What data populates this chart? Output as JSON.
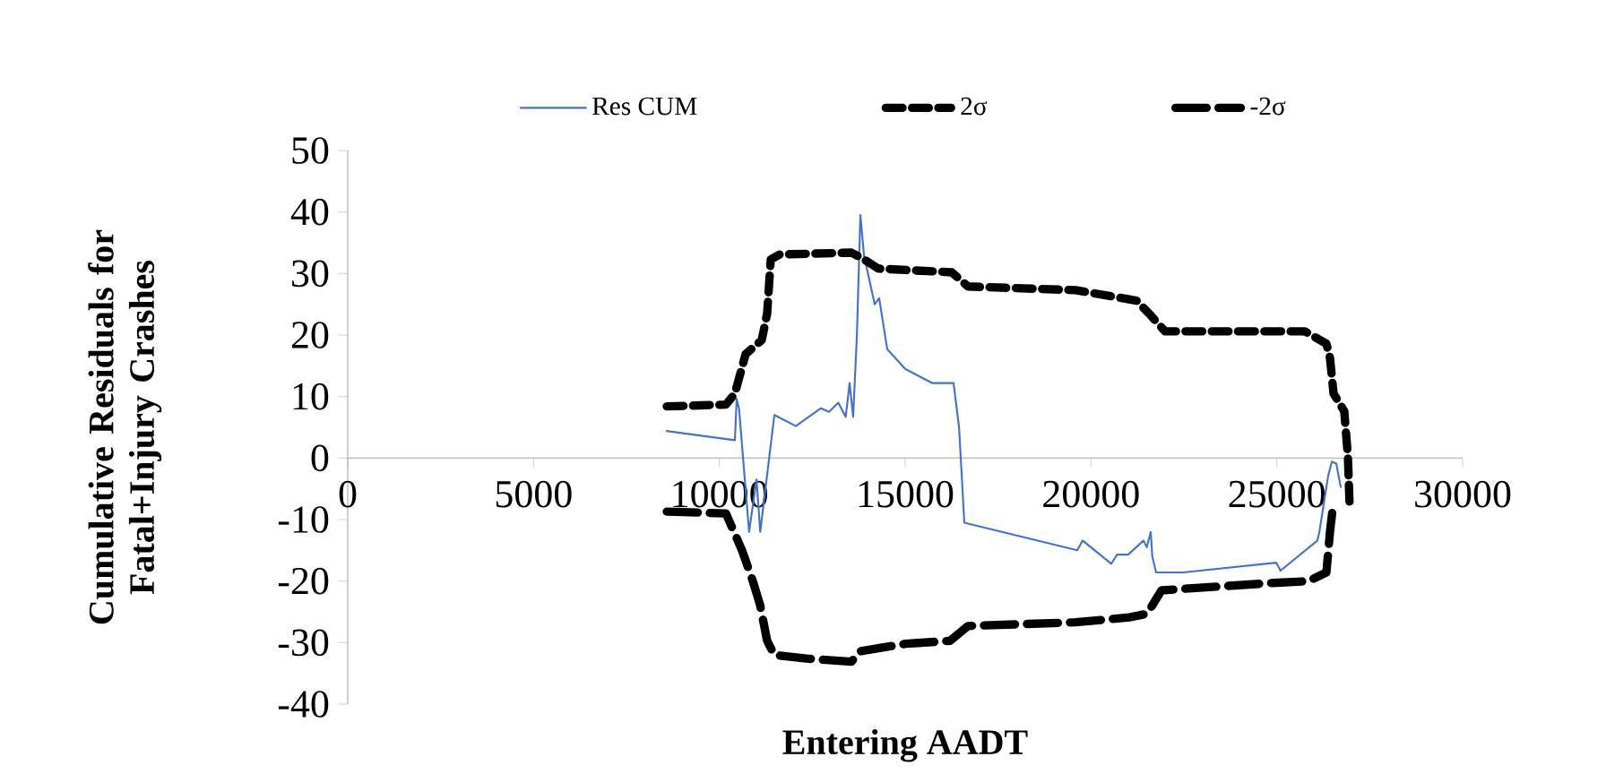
{
  "chart_data": {
    "type": "line",
    "xlabel": "Entering AADT",
    "ylabel": "Cumulative Residuals for Fatal+Injury Crashes",
    "xlim": [
      0,
      30000
    ],
    "xticks": [
      0,
      5000,
      10000,
      15000,
      20000,
      25000,
      30000
    ],
    "ylim": [
      -40,
      50
    ],
    "yticks": [
      -40,
      -30,
      -20,
      -10,
      0,
      10,
      20,
      30,
      40,
      50
    ],
    "grid": false,
    "legend": "top",
    "marker": "none",
    "series": [
      {
        "name": "Res CUM",
        "color": "#4472c4",
        "line_style": "solid",
        "x": [
          8585,
          10418,
          10466,
          10530,
          10800,
          11000,
          11100,
          11480,
          12058,
          12733,
          12950,
          13200,
          13400,
          13505,
          13600,
          13700,
          13795,
          13891,
          14180,
          14300,
          14518,
          15000,
          15724,
          16302,
          16450,
          16592,
          19631,
          19775,
          20547,
          20700,
          21000,
          21415,
          21500,
          21608,
          21650,
          21753,
          22476,
          24984,
          25100,
          26094,
          26140,
          26382,
          26480,
          26600,
          26720
        ],
        "values": [
          4.4,
          2.9,
          9.6,
          8,
          -12,
          -3.5,
          -12,
          7,
          5.2,
          8.1,
          7.5,
          9,
          6.7,
          12.2,
          6.7,
          19.8,
          39.5,
          33,
          25,
          26,
          17.7,
          14.5,
          12.2,
          12.2,
          5,
          -10.5,
          -15,
          -13.4,
          -17.2,
          -15.7,
          -15.7,
          -13.4,
          -14.5,
          -12,
          -16,
          -18.6,
          -18.6,
          -17,
          -18.3,
          -13.4,
          -12.2,
          -2.9,
          -0.6,
          -0.9,
          -4.7
        ]
      },
      {
        "name": "2σ",
        "color": "#000000",
        "line_style": "dashed",
        "x": [
          8585,
          10177,
          10418,
          10707,
          11141,
          11286,
          11383,
          11624,
          13553,
          13891,
          14277,
          16254,
          16688,
          19582,
          21222,
          21560,
          21994,
          25756,
          26334,
          26431,
          26527,
          26816,
          26913,
          26960
        ],
        "values": [
          8.4,
          8.7,
          10.5,
          16.9,
          19.2,
          23.5,
          32.3,
          33.1,
          33.4,
          32.3,
          30.8,
          30.2,
          27.9,
          27.3,
          25.6,
          23.5,
          20.6,
          20.6,
          18.6,
          16.3,
          10.5,
          7.6,
          0.3,
          -7.8
        ]
      },
      {
        "name": "-2σ",
        "color": "#000000",
        "line_style": "dashed",
        "x": [
          8585,
          10177,
          10610,
          10900,
          11093,
          11286,
          11480,
          12348,
          13553,
          13795,
          15000,
          16206,
          16688,
          19582,
          21029,
          21511,
          21897,
          24888,
          25853,
          26334,
          26431,
          26527
        ],
        "values": [
          -8.7,
          -9,
          -15,
          -20,
          -23.8,
          -29.7,
          -32,
          -32.6,
          -33.1,
          -31.4,
          -30.2,
          -29.7,
          -27.3,
          -26.7,
          -25.9,
          -25.3,
          -21.5,
          -20.3,
          -20,
          -18.6,
          -12,
          -7
        ]
      }
    ]
  }
}
